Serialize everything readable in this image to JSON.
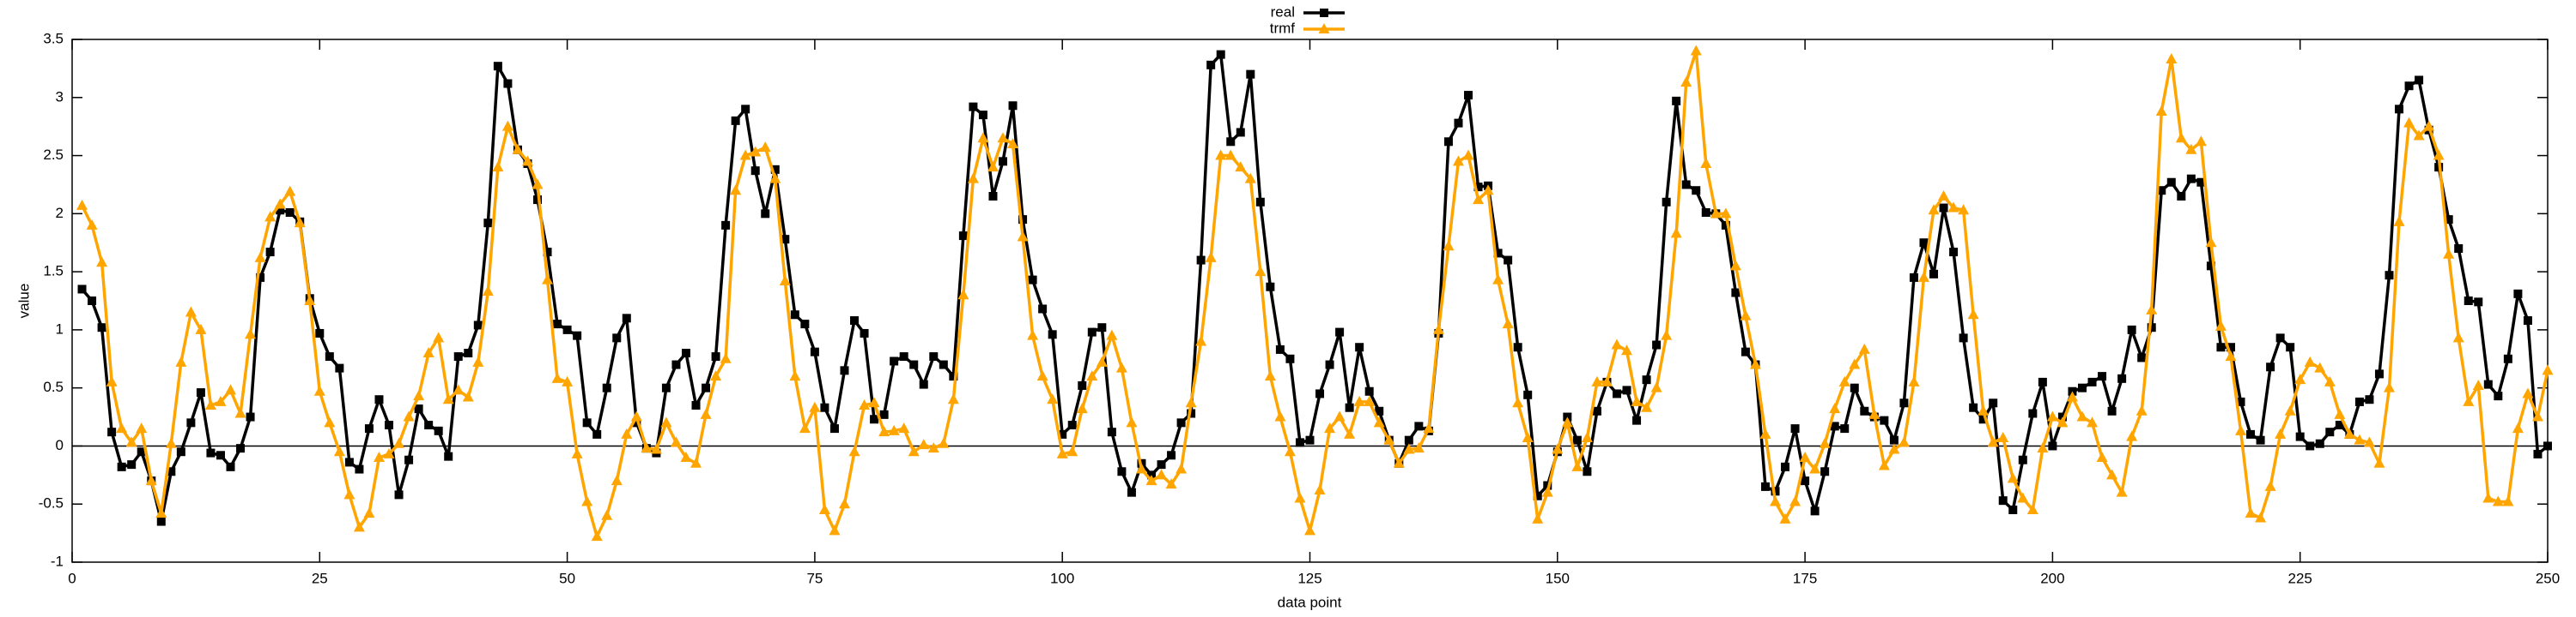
{
  "chart_data": {
    "type": "line",
    "xlabel": "data point",
    "ylabel": "value",
    "xlim": [
      0,
      250
    ],
    "ylim": [
      -1,
      3.5
    ],
    "xticks": [
      0,
      25,
      50,
      75,
      100,
      125,
      150,
      175,
      200,
      225,
      250
    ],
    "yticks": [
      -1,
      -0.5,
      0,
      0.5,
      1,
      1.5,
      2,
      2.5,
      3,
      3.5
    ],
    "zeroaxis": true,
    "legend": "top",
    "x": [
      1,
      2,
      3,
      4,
      5,
      6,
      7,
      8,
      9,
      10,
      11,
      12,
      13,
      14,
      15,
      16,
      17,
      18,
      19,
      20,
      21,
      22,
      23,
      24,
      25,
      26,
      27,
      28,
      29,
      30,
      31,
      32,
      33,
      34,
      35,
      36,
      37,
      38,
      39,
      40,
      41,
      42,
      43,
      44,
      45,
      46,
      47,
      48,
      49,
      50,
      51,
      52,
      53,
      54,
      55,
      56,
      57,
      58,
      59,
      60,
      61,
      62,
      63,
      64,
      65,
      66,
      67,
      68,
      69,
      70,
      71,
      72,
      73,
      74,
      75,
      76,
      77,
      78,
      79,
      80,
      81,
      82,
      83,
      84,
      85,
      86,
      87,
      88,
      89,
      90,
      91,
      92,
      93,
      94,
      95,
      96,
      97,
      98,
      99,
      100,
      101,
      102,
      103,
      104,
      105,
      106,
      107,
      108,
      109,
      110,
      111,
      112,
      113,
      114,
      115,
      116,
      117,
      118,
      119,
      120,
      121,
      122,
      123,
      124,
      125,
      126,
      127,
      128,
      129,
      130,
      131,
      132,
      133,
      134,
      135,
      136,
      137,
      138,
      139,
      140,
      141,
      142,
      143,
      144,
      145,
      146,
      147,
      148,
      149,
      150,
      151,
      152,
      153,
      154,
      155,
      156,
      157,
      158,
      159,
      160,
      161,
      162,
      163,
      164,
      165,
      166,
      167,
      168,
      169,
      170,
      171,
      172,
      173,
      174,
      175,
      176,
      177,
      178,
      179,
      180,
      181,
      182,
      183,
      184,
      185,
      186,
      187,
      188,
      189,
      190,
      191,
      192,
      193,
      194,
      195,
      196,
      197,
      198,
      199,
      200,
      201,
      202,
      203,
      204,
      205,
      206,
      207,
      208,
      209,
      210,
      211,
      212,
      213,
      214,
      215,
      216,
      217,
      218,
      219,
      220,
      221,
      222,
      223,
      224,
      225,
      226,
      227,
      228,
      229,
      230,
      231,
      232,
      233,
      234,
      235,
      236,
      237,
      238,
      239,
      240,
      241,
      242,
      243,
      244,
      245,
      246,
      247,
      248,
      249,
      250
    ],
    "series": [
      {
        "name": "real",
        "color": "#000000",
        "marker": "square",
        "values": [
          1.35,
          1.25,
          1.02,
          0.12,
          -0.18,
          -0.16,
          -0.05,
          -0.3,
          -0.65,
          -0.22,
          -0.05,
          0.2,
          0.46,
          -0.06,
          -0.08,
          -0.18,
          -0.02,
          0.25,
          1.45,
          1.67,
          2.03,
          2.01,
          1.93,
          1.27,
          0.97,
          0.77,
          0.67,
          -0.14,
          -0.2,
          0.15,
          0.4,
          0.18,
          -0.42,
          -0.12,
          0.32,
          0.18,
          0.13,
          -0.09,
          0.77,
          0.8,
          1.04,
          1.92,
          3.27,
          3.12,
          2.55,
          2.43,
          2.12,
          1.67,
          1.05,
          1.0,
          0.95,
          0.2,
          0.1,
          0.5,
          0.93,
          1.1,
          0.2,
          -0.02,
          -0.06,
          0.5,
          0.7,
          0.8,
          0.35,
          0.5,
          0.77,
          1.9,
          2.8,
          2.9,
          2.37,
          2.0,
          2.38,
          1.78,
          1.13,
          1.05,
          0.81,
          0.33,
          0.15,
          0.65,
          1.08,
          0.97,
          0.23,
          0.27,
          0.73,
          0.77,
          0.7,
          0.53,
          0.77,
          0.7,
          0.6,
          1.81,
          2.92,
          2.85,
          2.15,
          2.45,
          2.93,
          1.95,
          1.43,
          1.18,
          0.96,
          0.1,
          0.18,
          0.52,
          0.98,
          1.02,
          0.12,
          -0.22,
          -0.4,
          -0.15,
          -0.25,
          -0.16,
          -0.08,
          0.2,
          0.28,
          1.6,
          3.28,
          3.37,
          2.62,
          2.7,
          3.2,
          2.1,
          1.37,
          0.83,
          0.75,
          0.03,
          0.05,
          0.45,
          0.7,
          0.98,
          0.33,
          0.85,
          0.47,
          0.3,
          0.05,
          -0.15,
          0.05,
          0.17,
          0.13,
          0.97,
          2.62,
          2.78,
          3.02,
          2.23,
          2.24,
          1.66,
          1.6,
          0.85,
          0.44,
          -0.43,
          -0.34,
          -0.05,
          0.25,
          0.05,
          -0.22,
          0.3,
          0.55,
          0.45,
          0.48,
          0.22,
          0.57,
          0.87,
          2.1,
          2.97,
          2.25,
          2.2,
          2.01,
          2.0,
          1.9,
          1.32,
          0.81,
          0.7,
          -0.35,
          -0.39,
          -0.18,
          0.15,
          -0.3,
          -0.56,
          -0.22,
          0.17,
          0.15,
          0.5,
          0.3,
          0.25,
          0.22,
          0.05,
          0.37,
          1.45,
          1.75,
          1.48,
          2.05,
          1.67,
          0.93,
          0.33,
          0.23,
          0.37,
          -0.47,
          -0.55,
          -0.12,
          0.28,
          0.55,
          0.0,
          0.25,
          0.47,
          0.5,
          0.55,
          0.6,
          0.3,
          0.58,
          1.0,
          0.76,
          1.02,
          2.2,
          2.27,
          2.15,
          2.3,
          2.27,
          1.55,
          0.85,
          0.85,
          0.38,
          0.1,
          0.05,
          0.68,
          0.93,
          0.85,
          0.08,
          0.0,
          0.02,
          0.12,
          0.18,
          0.1,
          0.38,
          0.4,
          0.62,
          1.47,
          2.9,
          3.1,
          3.15,
          2.72,
          2.4,
          1.95,
          1.7,
          1.25,
          1.24,
          0.53,
          0.43,
          0.75,
          1.31,
          1.08,
          -0.07,
          0.0
        ]
      },
      {
        "name": "trmf",
        "color": "#ffa500",
        "marker": "triangle",
        "values": [
          2.07,
          1.9,
          1.58,
          0.55,
          0.15,
          0.03,
          0.15,
          -0.3,
          -0.58,
          0.02,
          0.72,
          1.15,
          1.0,
          0.35,
          0.38,
          0.48,
          0.28,
          0.96,
          1.62,
          1.97,
          2.08,
          2.19,
          1.92,
          1.25,
          0.47,
          0.2,
          -0.05,
          -0.42,
          -0.7,
          -0.58,
          -0.1,
          -0.07,
          0.02,
          0.25,
          0.43,
          0.8,
          0.93,
          0.4,
          0.48,
          0.42,
          0.72,
          1.33,
          2.4,
          2.75,
          2.55,
          2.45,
          2.25,
          1.43,
          0.58,
          0.55,
          -0.07,
          -0.48,
          -0.78,
          -0.6,
          -0.3,
          0.1,
          0.25,
          -0.02,
          -0.03,
          0.2,
          0.03,
          -0.1,
          -0.15,
          0.27,
          0.6,
          0.75,
          2.2,
          2.5,
          2.53,
          2.57,
          2.3,
          1.42,
          0.6,
          0.15,
          0.33,
          -0.55,
          -0.73,
          -0.5,
          -0.05,
          0.35,
          0.37,
          0.12,
          0.13,
          0.15,
          -0.05,
          0.01,
          -0.02,
          0.02,
          0.4,
          1.3,
          2.3,
          2.65,
          2.4,
          2.65,
          2.6,
          1.8,
          0.95,
          0.6,
          0.4,
          -0.07,
          -0.05,
          0.32,
          0.6,
          0.72,
          0.95,
          0.67,
          0.2,
          -0.2,
          -0.3,
          -0.25,
          -0.33,
          -0.2,
          0.37,
          0.9,
          1.62,
          2.5,
          2.5,
          2.4,
          2.3,
          1.5,
          0.6,
          0.25,
          -0.05,
          -0.45,
          -0.73,
          -0.38,
          0.15,
          0.25,
          0.1,
          0.38,
          0.38,
          0.2,
          0.05,
          -0.15,
          -0.03,
          -0.02,
          0.15,
          1.0,
          1.72,
          2.45,
          2.5,
          2.12,
          2.2,
          1.43,
          1.05,
          0.37,
          0.07,
          -0.63,
          -0.4,
          -0.03,
          0.2,
          -0.18,
          0.07,
          0.55,
          0.55,
          0.87,
          0.82,
          0.38,
          0.33,
          0.5,
          0.95,
          1.83,
          3.13,
          3.4,
          2.43,
          2.0,
          2.0,
          1.55,
          1.12,
          0.7,
          0.1,
          -0.48,
          -0.63,
          -0.48,
          -0.1,
          -0.2,
          0.02,
          0.32,
          0.55,
          0.7,
          0.83,
          0.27,
          -0.17,
          -0.03,
          0.03,
          0.55,
          1.45,
          2.03,
          2.15,
          2.05,
          2.03,
          1.13,
          0.3,
          0.03,
          0.07,
          -0.28,
          -0.45,
          -0.55,
          -0.02,
          0.25,
          0.2,
          0.42,
          0.25,
          0.2,
          -0.1,
          -0.25,
          -0.4,
          0.08,
          0.3,
          1.17,
          2.88,
          3.33,
          2.65,
          2.55,
          2.62,
          1.75,
          1.03,
          0.77,
          0.13,
          -0.58,
          -0.62,
          -0.35,
          0.1,
          0.3,
          0.57,
          0.72,
          0.67,
          0.55,
          0.27,
          0.1,
          0.05,
          0.03,
          -0.15,
          0.5,
          1.93,
          2.78,
          2.67,
          2.75,
          2.5,
          1.65,
          0.93,
          0.38,
          0.52,
          -0.45,
          -0.48,
          -0.48,
          0.15,
          0.45,
          0.25,
          0.65
        ]
      }
    ]
  }
}
